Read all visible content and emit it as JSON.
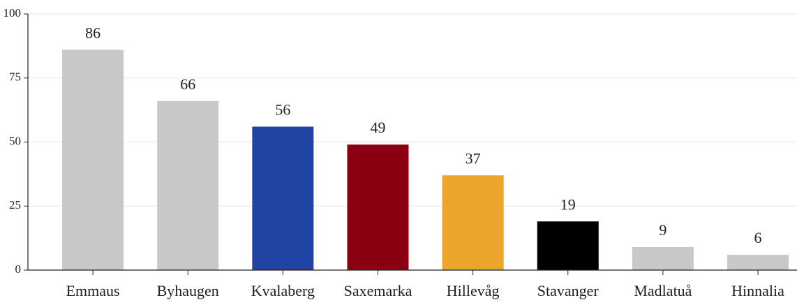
{
  "chart_data": {
    "type": "bar",
    "categories": [
      "Emmaus",
      "Byhaugen",
      "Kvalaberg",
      "Saxemarka",
      "Hillevåg",
      "Stavanger",
      "Madlatuå",
      "Hinnalia"
    ],
    "values": [
      86,
      66,
      56,
      49,
      37,
      19,
      9,
      6
    ],
    "colors": [
      "#c8c8c8",
      "#c8c8c8",
      "#2144a4",
      "#8a0012",
      "#eba52c",
      "#000000",
      "#c8c8c8",
      "#c8c8c8"
    ],
    "ylim": [
      0,
      100
    ],
    "yticks": [
      0,
      25,
      50,
      75,
      100
    ],
    "grid": true
  }
}
